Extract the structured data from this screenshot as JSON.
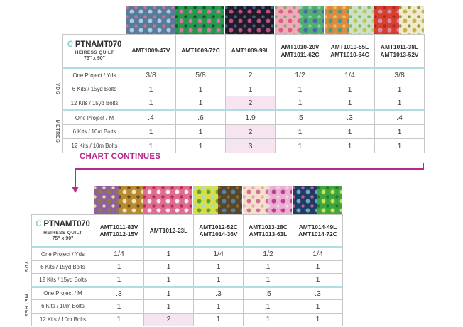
{
  "colors": {
    "magenta": "#b62a90",
    "teal_line": "#aedde3",
    "highlight_pink": "#f6e5f0",
    "border": "#c6c6c6",
    "border_outer": "#8f8f8f",
    "text": "#3d3d3d",
    "collection_c": "#8ccfd8"
  },
  "chart_continues": {
    "label": "CHART CONTINUES"
  },
  "title": {
    "c": "C",
    "code": "PTNAMT070",
    "name": "HEIRESS QUILT",
    "size": "75\" x 90\""
  },
  "groups": {
    "yds": "YDS",
    "metres": "METRES"
  },
  "table1": {
    "columns": [
      {
        "skus": [
          "AMT1009-47V"
        ],
        "swatches": [
          {
            "bg": "#5a7a99",
            "d1": "#a9cde4",
            "d2": "#c27793"
          }
        ]
      },
      {
        "skus": [
          "AMT1009-72C"
        ],
        "swatches": [
          {
            "bg": "#259a4d",
            "d1": "#d873a3",
            "d2": "#10572c"
          }
        ]
      },
      {
        "skus": [
          "AMT1009-99L"
        ],
        "swatches": [
          {
            "bg": "#201c28",
            "d1": "#bb4f87",
            "d2": "#44618c"
          }
        ]
      },
      {
        "skus": [
          "AMT1010-20V",
          "AMT1011-62C"
        ],
        "swatches": [
          {
            "bg": "#efaabc",
            "d1": "#d95f7e",
            "d2": "#7fae6a"
          },
          {
            "bg": "#4fae70",
            "d1": "#4a67ab",
            "d2": "#8fd0a0"
          }
        ]
      },
      {
        "skus": [
          "AMT1010-55L",
          "AMT1010-64C"
        ],
        "swatches": [
          {
            "bg": "#dd8b41",
            "d1": "#3f9e8a",
            "d2": "#f0c060"
          },
          {
            "bg": "#cfe0c8",
            "d1": "#b7cb52",
            "d2": "#7fb96a"
          }
        ]
      },
      {
        "skus": [
          "AMT1011-38L",
          "AMT1013-52V"
        ],
        "swatches": [
          {
            "bg": "#d8402d",
            "d1": "#d98ba4",
            "d2": "#a42e2f"
          },
          {
            "bg": "#f2e9cd",
            "d1": "#c3b34a",
            "d2": "#8a9a3d"
          }
        ]
      }
    ],
    "rows": [
      {
        "label": "One Project / Yds",
        "group": "yds",
        "values": [
          "3/8",
          "5/8",
          "2",
          "1/2",
          "1/4",
          "3/8"
        ],
        "hl": []
      },
      {
        "label": "6 Kits / 15yd Bolts",
        "group": "yds",
        "values": [
          "1",
          "1",
          "1",
          "1",
          "1",
          "1"
        ],
        "hl": []
      },
      {
        "label": "12 Kits / 15yd Bolts",
        "group": "yds",
        "values": [
          "1",
          "1",
          "2",
          "1",
          "1",
          "1"
        ],
        "hl": [
          2
        ]
      },
      {
        "label": "One Project / M",
        "group": "metres",
        "values": [
          ".4",
          ".6",
          "1.9",
          ".5",
          ".3",
          ".4"
        ],
        "hl": []
      },
      {
        "label": "6 Kits / 10m Bolts",
        "group": "metres",
        "values": [
          "1",
          "1",
          "2",
          "1",
          "1",
          "1"
        ],
        "hl": [
          2
        ]
      },
      {
        "label": "12 Kits / 10m Bolts",
        "group": "metres",
        "values": [
          "1",
          "1",
          "3",
          "1",
          "1",
          "1"
        ],
        "hl": [
          2
        ]
      }
    ]
  },
  "table2": {
    "columns": [
      {
        "skus": [
          "AMT1011-83V",
          "AMT1012-15V"
        ],
        "swatches": [
          {
            "bg": "#8f5f9e",
            "d1": "#8a8136",
            "d2": "#e8d9b0"
          },
          {
            "bg": "#b8892f",
            "d1": "#f0e3c0",
            "d2": "#6b4a1f"
          }
        ]
      },
      {
        "skus": [
          "AMT1012-23L"
        ],
        "swatches": [
          {
            "bg": "#e06a90",
            "d1": "#f3f0ee",
            "d2": "#b03050"
          }
        ]
      },
      {
        "skus": [
          "AMT1012-52C",
          "AMT1014-36V"
        ],
        "swatches": [
          {
            "bg": "#d8de45",
            "d1": "#57a53a",
            "d2": "#a8d8e8"
          },
          {
            "bg": "#5c4628",
            "d1": "#4a85ad",
            "d2": "#8a6a3a"
          }
        ]
      },
      {
        "skus": [
          "AMT1013-28C",
          "AMT1013-63L"
        ],
        "swatches": [
          {
            "bg": "#f3e2c4",
            "d1": "#d967a8",
            "d2": "#e0a8c8"
          },
          {
            "bg": "#e9aed0",
            "d1": "#c03a90",
            "d2": "#f0d0e4"
          }
        ]
      },
      {
        "skus": [
          "AMT1014-49L",
          "AMT1014-72C"
        ],
        "swatches": [
          {
            "bg": "#1f3d5e",
            "d1": "#6aa8cf",
            "d2": "#c45a9d"
          },
          {
            "bg": "#3fa53f",
            "d1": "#cde24f",
            "d2": "#1f7a2f"
          }
        ]
      }
    ],
    "rows": [
      {
        "label": "One Project / Yds",
        "group": "yds",
        "values": [
          "1/4",
          "1",
          "1/4",
          "1/2",
          "1/4"
        ],
        "hl": []
      },
      {
        "label": "6 Kits / 15yd Bolts",
        "group": "yds",
        "values": [
          "1",
          "1",
          "1",
          "1",
          "1"
        ],
        "hl": []
      },
      {
        "label": "12 Kits / 15yd Bolts",
        "group": "yds",
        "values": [
          "1",
          "1",
          "1",
          "1",
          "1"
        ],
        "hl": []
      },
      {
        "label": "One Project / M",
        "group": "metres",
        "values": [
          ".3",
          "1",
          ".3",
          ".5",
          ".3"
        ],
        "hl": []
      },
      {
        "label": "6 Kits / 10m Bolts",
        "group": "metres",
        "values": [
          "1",
          "1",
          "1",
          "1",
          "1"
        ],
        "hl": []
      },
      {
        "label": "12 Kits / 10m Bolts",
        "group": "metres",
        "values": [
          "1",
          "2",
          "1",
          "1",
          "1"
        ],
        "hl": [
          1
        ]
      }
    ]
  }
}
